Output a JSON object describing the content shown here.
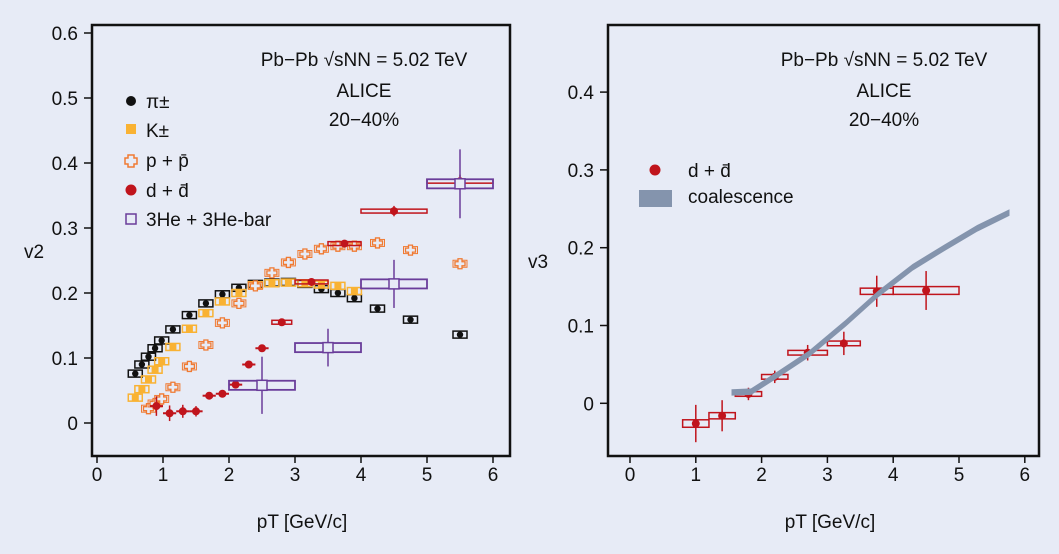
{
  "colors": {
    "background": "#e7ebf6",
    "pion": "#111111",
    "kaon": "#f9b233",
    "proton": "#f07a32",
    "deuteron": "#c0141c",
    "he3": "#6a3d9a",
    "coalescence": "#8494ad"
  },
  "chart_data": [
    {
      "type": "scatter",
      "ylabel": "v2",
      "xlabel": "pT [GeV/c]",
      "xlim": [
        0,
        6.1
      ],
      "ylim": [
        -0.05,
        0.62
      ],
      "xticks": [
        "0",
        "1",
        "2",
        "3",
        "4",
        "5",
        "6"
      ],
      "yticks": [
        "0",
        "0.1",
        "0.2",
        "0.3",
        "0.4",
        "0.5",
        "0.6"
      ],
      "annotation": [
        "Pb−Pb √sNN = 5.02 TeV",
        "ALICE",
        "20−40%"
      ],
      "legend_position": "top-left",
      "legend": [
        "π±",
        "K±",
        "p + p̄",
        "d + d̄",
        "3He + 3He-bar"
      ],
      "series": [
        {
          "name": "π±",
          "marker": "filled-circle",
          "color": "#111111",
          "points": [
            [
              0.58,
              0.076
            ],
            [
              0.68,
              0.09
            ],
            [
              0.78,
              0.102
            ],
            [
              0.88,
              0.115
            ],
            [
              0.98,
              0.127
            ],
            [
              1.15,
              0.144
            ],
            [
              1.4,
              0.166
            ],
            [
              1.65,
              0.184
            ],
            [
              1.9,
              0.198
            ],
            [
              2.15,
              0.208
            ],
            [
              2.4,
              0.214
            ],
            [
              2.65,
              0.216
            ],
            [
              2.9,
              0.217
            ],
            [
              3.15,
              0.214
            ],
            [
              3.4,
              0.206
            ],
            [
              3.65,
              0.2
            ],
            [
              3.9,
              0.192
            ],
            [
              4.25,
              0.176
            ],
            [
              4.75,
              0.159
            ],
            [
              5.5,
              0.136
            ]
          ]
        },
        {
          "name": "K±",
          "marker": "filled-square",
          "color": "#f9b233",
          "points": [
            [
              0.58,
              0.039
            ],
            [
              0.68,
              0.052
            ],
            [
              0.78,
              0.067
            ],
            [
              0.88,
              0.082
            ],
            [
              0.98,
              0.095
            ],
            [
              1.15,
              0.117
            ],
            [
              1.4,
              0.145
            ],
            [
              1.65,
              0.169
            ],
            [
              1.9,
              0.187
            ],
            [
              2.15,
              0.2
            ],
            [
              2.4,
              0.212
            ],
            [
              2.65,
              0.215
            ],
            [
              2.9,
              0.216
            ],
            [
              3.15,
              0.215
            ],
            [
              3.4,
              0.213
            ],
            [
              3.65,
              0.211
            ],
            [
              3.9,
              0.203
            ]
          ]
        },
        {
          "name": "p + p̄",
          "marker": "open-cross",
          "color": "#f07a32",
          "points": [
            [
              0.78,
              0.022
            ],
            [
              0.88,
              0.03
            ],
            [
              0.98,
              0.037
            ],
            [
              1.15,
              0.055
            ],
            [
              1.4,
              0.087
            ],
            [
              1.65,
              0.12
            ],
            [
              1.9,
              0.154
            ],
            [
              2.15,
              0.184
            ],
            [
              2.4,
              0.211
            ],
            [
              2.65,
              0.231
            ],
            [
              2.9,
              0.247
            ],
            [
              3.15,
              0.26
            ],
            [
              3.4,
              0.268
            ],
            [
              3.65,
              0.272
            ],
            [
              3.9,
              0.272
            ],
            [
              4.25,
              0.277
            ],
            [
              4.75,
              0.266
            ],
            [
              5.5,
              0.245
            ]
          ]
        },
        {
          "name": "d + d̄",
          "marker": "filled-circle",
          "color": "#c0141c",
          "points": [
            [
              0.9,
              0.026,
              0.015,
              0.1
            ],
            [
              1.1,
              0.015,
              0.012,
              0.1
            ],
            [
              1.3,
              0.018,
              0.01,
              0.1
            ],
            [
              1.5,
              0.018,
              0.008,
              0.1
            ],
            [
              1.7,
              0.042,
              0.004,
              0.1
            ],
            [
              1.9,
              0.045,
              0.004,
              0.1
            ],
            [
              2.1,
              0.059,
              0.004,
              0.1
            ],
            [
              2.3,
              0.09,
              0.004,
              0.1
            ],
            [
              2.5,
              0.115,
              0.004,
              0.1
            ],
            [
              2.8,
              0.155,
              0.004,
              0.15
            ],
            [
              3.25,
              0.217,
              0.004,
              0.25
            ],
            [
              3.75,
              0.276,
              0.004,
              0.25
            ],
            [
              4.5,
              0.326,
              0.008,
              0.5
            ],
            [
              5.5,
              0.372,
              0.01,
              0.5
            ]
          ]
        },
        {
          "name": "3He + 3He-bar",
          "marker": "open-square",
          "color": "#6a3d9a",
          "points": [
            [
              2.5,
              0.058,
              0.044,
              0.5
            ],
            [
              3.5,
              0.116,
              0.029,
              0.5
            ],
            [
              4.5,
              0.214,
              0.037,
              0.5
            ],
            [
              5.5,
              0.368,
              0.053,
              0.5
            ]
          ]
        }
      ]
    },
    {
      "type": "scatter",
      "ylabel": "v3",
      "xlabel": "pT [GeV/c]",
      "xlim": [
        -0.05,
        6.2
      ],
      "ylim": [
        -0.07,
        0.47
      ],
      "xticks": [
        "0",
        "1",
        "2",
        "3",
        "4",
        "5",
        "6"
      ],
      "yticks": [
        "0",
        "0.1",
        "0.2",
        "0.3",
        "0.4"
      ],
      "annotation": [
        "Pb−Pb √sNN = 5.02 TeV",
        "ALICE",
        "20−40%"
      ],
      "legend_position": "top-left",
      "legend": [
        "d + d̄",
        "coalescence"
      ],
      "series": [
        {
          "name": "d + d̄",
          "marker": "filled-circle",
          "color": "#c0141c",
          "points": [
            [
              1.0,
              -0.026,
              0.024,
              0.2
            ],
            [
              1.4,
              -0.016,
              0.02,
              0.2
            ],
            [
              1.8,
              0.012,
              0.008,
              0.2
            ],
            [
              2.2,
              0.034,
              0.008,
              0.2
            ],
            [
              2.7,
              0.065,
              0.01,
              0.3
            ],
            [
              3.25,
              0.077,
              0.015,
              0.25
            ],
            [
              3.75,
              0.144,
              0.02,
              0.25
            ],
            [
              4.5,
              0.145,
              0.025,
              0.5
            ]
          ]
        },
        {
          "name": "coalescence",
          "type": "band",
          "color": "#8494ad",
          "points": [
            [
              1.55,
              0.014
            ],
            [
              1.84,
              0.015
            ],
            [
              2.23,
              0.036
            ],
            [
              2.73,
              0.064
            ],
            [
              3.28,
              0.103
            ],
            [
              3.78,
              0.141
            ],
            [
              4.3,
              0.175
            ],
            [
              4.78,
              0.2
            ],
            [
              5.28,
              0.225
            ],
            [
              5.76,
              0.245
            ]
          ]
        }
      ]
    }
  ]
}
